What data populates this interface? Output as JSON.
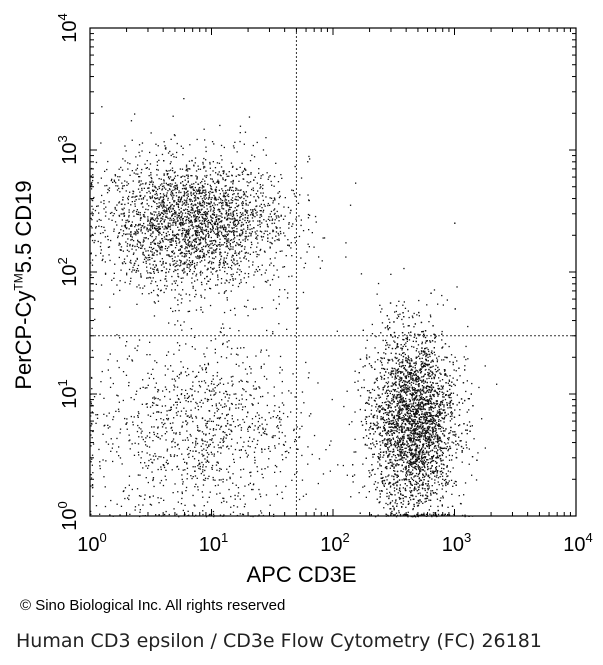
{
  "chart_data": {
    "type": "scatter",
    "xlabel": "APC CD3E",
    "ylabel": "PerCP-Cy™5.5 CD19",
    "ylabel_main": "PerCP-Cy",
    "ylabel_sup": "TM",
    "ylabel_tail": "5.5 CD19",
    "x_scale": "log",
    "y_scale": "log",
    "xlim": [
      1,
      10000
    ],
    "ylim": [
      1,
      10000
    ],
    "x_ticks": [
      {
        "value": 1,
        "base": "10",
        "exp": "0"
      },
      {
        "value": 10,
        "base": "10",
        "exp": "1"
      },
      {
        "value": 100,
        "base": "10",
        "exp": "2"
      },
      {
        "value": 1000,
        "base": "10",
        "exp": "3"
      },
      {
        "value": 10000,
        "base": "10",
        "exp": "4"
      }
    ],
    "y_ticks": [
      {
        "value": 1,
        "base": "10",
        "exp": "0"
      },
      {
        "value": 10,
        "base": "10",
        "exp": "1"
      },
      {
        "value": 100,
        "base": "10",
        "exp": "2"
      },
      {
        "value": 1000,
        "base": "10",
        "exp": "3"
      },
      {
        "value": 10000,
        "base": "10",
        "exp": "4"
      }
    ],
    "quadrant_gates": {
      "x": 50,
      "y": 30,
      "style": "dotted"
    },
    "grid": false,
    "populations": [
      {
        "name": "",
        "center": [
          7,
          250
        ],
        "spread_log": [
          0.38,
          0.27
        ],
        "count": 2800
      },
      {
        "name": "",
        "center": [
          450,
          6
        ],
        "spread_log": [
          0.18,
          0.38
        ],
        "count": 3600
      },
      {
        "name": "",
        "center": [
          8,
          5
        ],
        "spread_log": [
          0.45,
          0.4
        ],
        "count": 1200
      }
    ]
  },
  "footer": {
    "copyright": "© Sino Biological Inc. All rights reserved",
    "caption": "Human CD3 epsilon / CD3e Flow Cytometry (FC) 26181"
  }
}
